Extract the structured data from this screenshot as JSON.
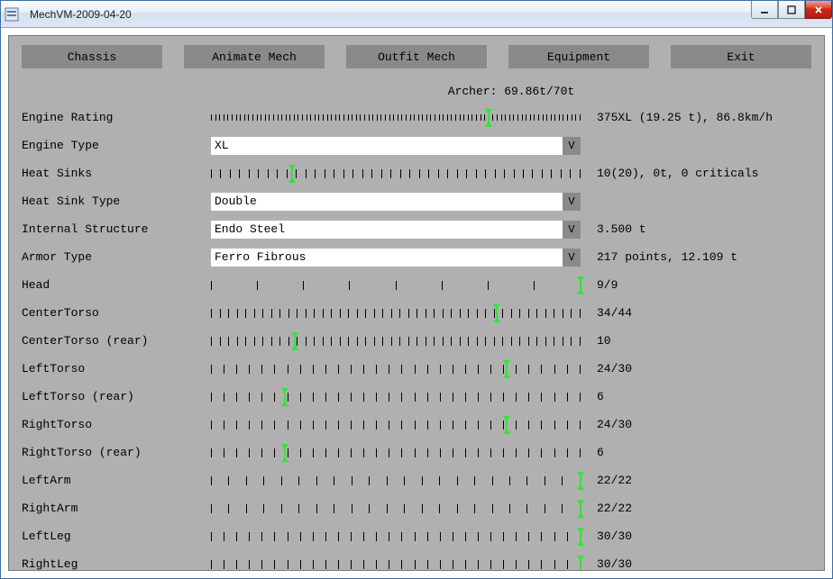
{
  "window": {
    "title": "MechVM-2009-04-20"
  },
  "toolbar": {
    "chassis": "Chassis",
    "animate": "Animate Mech",
    "outfit": "Outfit Mech",
    "equipment": "Equipment",
    "exit": "Exit"
  },
  "mech_summary": "Archer: 69.86t/70t",
  "rows": [
    {
      "type": "slider",
      "label": "Engine Rating",
      "tick_count": 90,
      "tick_style": "fine",
      "handle_pct": 75,
      "readout": "375XL (19.25 t), 86.8km/h"
    },
    {
      "type": "dropdown",
      "label": "Engine Type",
      "value": "XL",
      "readout": ""
    },
    {
      "type": "slider",
      "label": "Heat Sinks",
      "tick_count": 40,
      "tick_style": "normal",
      "handle_pct": 22,
      "readout": "10(20),  0t, 0 criticals"
    },
    {
      "type": "dropdown",
      "label": "Heat Sink Type",
      "value": "Double",
      "readout": ""
    },
    {
      "type": "dropdown",
      "label": "Internal Structure",
      "value": "Endo Steel",
      "readout": "3.500 t"
    },
    {
      "type": "dropdown",
      "label": "Armor Type",
      "value": "Ferro Fibrous",
      "readout": "217 points, 12.109 t"
    },
    {
      "type": "slider",
      "label": "Head",
      "tick_count": 9,
      "tick_style": "sparse",
      "handle_pct": 100,
      "readout": "9/9"
    },
    {
      "type": "slider",
      "label": "CenterTorso",
      "tick_count": 44,
      "tick_style": "normal",
      "handle_pct": 77.3,
      "readout": "34/44"
    },
    {
      "type": "slider",
      "label": "CenterTorso (rear)",
      "tick_count": 44,
      "tick_style": "normal",
      "handle_pct": 22.7,
      "readout": "10"
    },
    {
      "type": "slider",
      "label": "LeftTorso",
      "tick_count": 30,
      "tick_style": "normal",
      "handle_pct": 80,
      "readout": "24/30"
    },
    {
      "type": "slider",
      "label": "LeftTorso (rear)",
      "tick_count": 30,
      "tick_style": "normal",
      "handle_pct": 20,
      "readout": "6"
    },
    {
      "type": "slider",
      "label": "RightTorso",
      "tick_count": 30,
      "tick_style": "normal",
      "handle_pct": 80,
      "readout": "24/30"
    },
    {
      "type": "slider",
      "label": "RightTorso (rear)",
      "tick_count": 30,
      "tick_style": "normal",
      "handle_pct": 20,
      "readout": "6"
    },
    {
      "type": "slider",
      "label": "LeftArm",
      "tick_count": 22,
      "tick_style": "normal",
      "handle_pct": 100,
      "readout": "22/22"
    },
    {
      "type": "slider",
      "label": "RightArm",
      "tick_count": 22,
      "tick_style": "normal",
      "handle_pct": 100,
      "readout": "22/22"
    },
    {
      "type": "slider",
      "label": "LeftLeg",
      "tick_count": 30,
      "tick_style": "normal",
      "handle_pct": 100,
      "readout": "30/30"
    },
    {
      "type": "slider",
      "label": "RightLeg",
      "tick_count": 30,
      "tick_style": "normal",
      "handle_pct": 100,
      "readout": "30/30"
    }
  ],
  "colors": {
    "panel_bg": "#b0b0b0",
    "button_bg": "#8a8a8a",
    "handle_color": "#35e23a"
  }
}
